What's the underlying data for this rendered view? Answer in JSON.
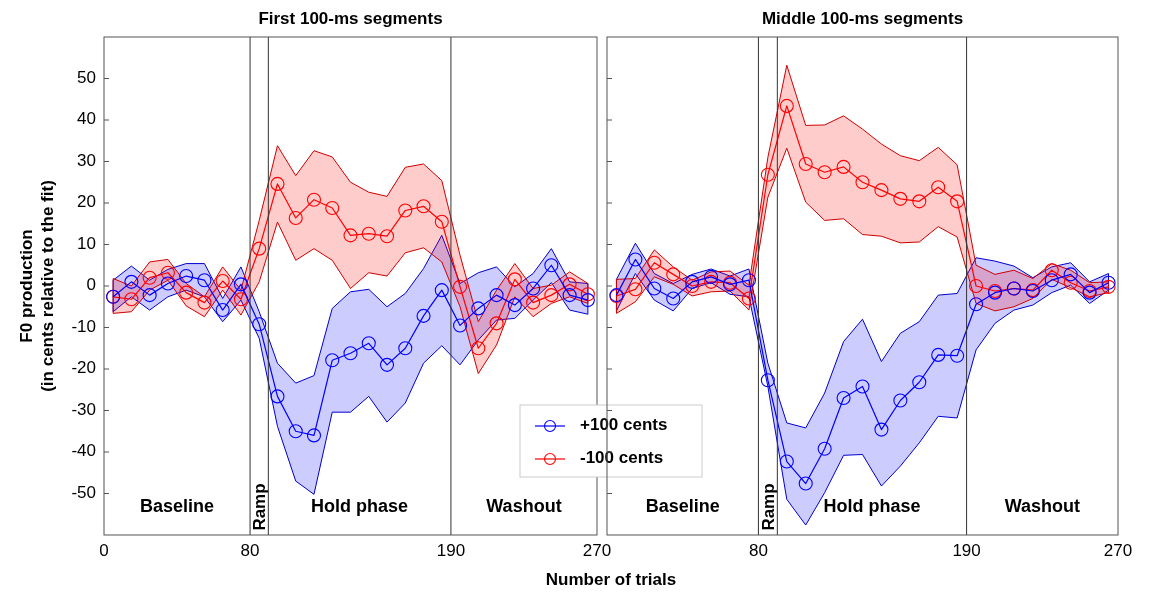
{
  "chart_data": [
    {
      "type": "line",
      "title": "First 100-ms segments",
      "xlabel": "Number of trials",
      "ylabel": "F0 production\n(in cents relative to the fit)",
      "x": [
        5,
        15,
        25,
        35,
        45,
        55,
        65,
        75,
        85,
        95,
        105,
        115,
        125,
        135,
        145,
        155,
        165,
        175,
        185,
        195,
        205,
        215,
        225,
        235,
        245,
        255,
        265
      ],
      "xlim": [
        0,
        270
      ],
      "xticks": [
        0,
        80,
        190,
        270
      ],
      "ylim": [
        -60,
        60
      ],
      "yticks": [
        -50,
        -40,
        -30,
        -20,
        -10,
        0,
        10,
        20,
        30,
        40,
        50
      ],
      "marker": "circle",
      "legend": "bottom right",
      "series": [
        {
          "name": "+100 cents",
          "color": "#0000ff",
          "values": [
            -2.6,
            1.0,
            -2.2,
            0.6,
            2.4,
            1.4,
            -5.8,
            0.4,
            -9.2,
            -26.6,
            -35.0,
            -36.0,
            -17.9,
            -16.2,
            -13.8,
            -19.0,
            -15.0,
            -7.2,
            -1.0,
            -9.5,
            -5.4,
            -2.2,
            -4.6,
            -0.6,
            5.0,
            -2.2,
            -3.4
          ],
          "upper": [
            1.4,
            4.8,
            1.4,
            4.0,
            5.4,
            5.4,
            -3.0,
            4.6,
            -6.2,
            -18.6,
            -23.4,
            -21.6,
            -5.4,
            -1.4,
            -0.8,
            -5.0,
            -1.8,
            4.2,
            12.2,
            0.6,
            3.2,
            4.6,
            -0.2,
            3.0,
            9.0,
            1.0,
            0.6
          ],
          "lower": [
            -6.2,
            -2.6,
            -5.8,
            -2.6,
            -1.0,
            -2.6,
            -8.6,
            -3.4,
            -12.6,
            -33.8,
            -47.0,
            -50.2,
            -30.4,
            -30.4,
            -26.6,
            -32.8,
            -28.2,
            -18.6,
            -14.4,
            -19.0,
            -13.0,
            -8.2,
            -7.8,
            -3.4,
            0.8,
            -5.8,
            -6.8
          ]
        },
        {
          "name": "-100 cents",
          "color": "#ff0000",
          "values": [
            -2.6,
            -3.2,
            2.0,
            3.2,
            -1.6,
            -4.0,
            1.2,
            -3.2,
            9.0,
            24.6,
            16.4,
            20.8,
            18.8,
            12.2,
            12.6,
            12.0,
            18.2,
            19.2,
            15.5,
            -0.2,
            -15.0,
            -9.0,
            1.6,
            -4.0,
            -2.2,
            0.4,
            -2.0
          ],
          "upper": [
            1.8,
            0.0,
            5.8,
            6.4,
            0.6,
            -2.6,
            4.6,
            -1.0,
            15.8,
            33.8,
            26.6,
            32.6,
            31.1,
            25.0,
            22.6,
            21.6,
            28.6,
            29.4,
            25.4,
            7.4,
            -8.6,
            -1.0,
            5.4,
            -0.6,
            0.2,
            3.4,
            0.6
          ],
          "lower": [
            -6.6,
            -6.2,
            -1.0,
            1.4,
            -4.8,
            -7.4,
            -1.0,
            -7.0,
            1.0,
            15.4,
            6.2,
            9.0,
            6.2,
            -0.6,
            3.2,
            2.4,
            8.0,
            9.2,
            5.8,
            -5.0,
            -21.1,
            -14.2,
            -2.6,
            -7.4,
            -4.2,
            -2.6,
            -4.2
          ]
        }
      ],
      "ref_lines": [
        {
          "axis": "x",
          "value": 80,
          "color": "#333333"
        },
        {
          "axis": "x",
          "value": 90,
          "color": "#333333"
        },
        {
          "axis": "x",
          "value": 190,
          "color": "#333333"
        }
      ],
      "annotations": [
        "Baseline",
        "Ramp",
        "Hold phase",
        "Washout"
      ]
    },
    {
      "type": "line",
      "title": "Middle 100-ms segments",
      "x": [
        5,
        15,
        25,
        35,
        45,
        55,
        65,
        75,
        85,
        95,
        105,
        115,
        125,
        135,
        145,
        155,
        165,
        175,
        185,
        195,
        205,
        215,
        225,
        235,
        245,
        255,
        265
      ],
      "xlim": [
        0,
        270
      ],
      "xticks": [
        80,
        190,
        270
      ],
      "ylim": [
        -60,
        60
      ],
      "yticks": [
        -50,
        -40,
        -30,
        -20,
        -10,
        0,
        10,
        20,
        30,
        40,
        50
      ],
      "marker": "circle",
      "tick_labels": "x",
      "series": [
        {
          "color": "#0000ff",
          "values": [
            -2.2,
            6.4,
            -0.6,
            -3.0,
            1.0,
            2.2,
            0.4,
            1.4,
            -22.7,
            -42.3,
            -47.6,
            -39.2,
            -27.0,
            -24.2,
            -34.6,
            -27.6,
            -23.2,
            -16.6,
            -16.8,
            -4.4,
            -1.6,
            -0.6,
            -1.2,
            1.4,
            2.8,
            -1.6,
            0.8
          ],
          "upper": [
            1.6,
            10.3,
            3.0,
            0.6,
            2.8,
            4.1,
            2.4,
            4.1,
            -18.6,
            -33.0,
            -34.2,
            -25.8,
            -13.4,
            -8.0,
            -18.2,
            -11.4,
            -8.6,
            -2.2,
            -1.8,
            6.8,
            6.0,
            4.8,
            2.0,
            4.6,
            5.6,
            1.0,
            3.0
          ],
          "lower": [
            -6.0,
            3.0,
            -3.4,
            -6.0,
            -0.6,
            0.8,
            -2.0,
            -2.6,
            -24.2,
            -51.4,
            -57.6,
            -49.8,
            -40.8,
            -40.6,
            -48.2,
            -43.4,
            -37.8,
            -31.4,
            -31.8,
            -15.4,
            -9.0,
            -5.8,
            -4.6,
            -1.6,
            0.2,
            -4.2,
            -1.0
          ]
        },
        {
          "color": "#ff0000",
          "values": [
            -2.4,
            -0.8,
            5.6,
            2.8,
            0.0,
            1.0,
            0.8,
            -3.0,
            26.8,
            43.4,
            29.4,
            27.4,
            28.7,
            25.0,
            23.1,
            21.0,
            20.4,
            23.8,
            20.4,
            0.0,
            -1.2,
            -0.6,
            -1.0,
            3.8,
            0.8,
            -1.2,
            -0.2
          ],
          "upper": [
            1.6,
            1.8,
            8.7,
            4.6,
            1.4,
            3.4,
            3.6,
            0.2,
            31.0,
            53.2,
            38.7,
            38.8,
            41.0,
            37.8,
            34.2,
            31.4,
            30.2,
            33.4,
            29.2,
            5.0,
            2.8,
            3.8,
            1.8,
            5.4,
            3.8,
            0.8,
            1.0
          ],
          "lower": [
            -6.6,
            -3.8,
            2.2,
            0.4,
            -2.4,
            -1.4,
            -1.2,
            -5.8,
            21.4,
            33.2,
            20.2,
            15.8,
            16.2,
            12.4,
            12.0,
            10.4,
            10.6,
            14.3,
            11.8,
            -4.2,
            -6.0,
            -5.0,
            -3.0,
            1.6,
            -0.4,
            -2.6,
            -1.6
          ]
        }
      ],
      "ref_lines": [
        {
          "axis": "x",
          "value": 80,
          "color": "#333333"
        },
        {
          "axis": "x",
          "value": 90,
          "color": "#333333"
        },
        {
          "axis": "x",
          "value": 190,
          "color": "#333333"
        }
      ],
      "annotations": [
        "Baseline",
        "Ramp",
        "Hold phase",
        "Washout"
      ]
    }
  ]
}
